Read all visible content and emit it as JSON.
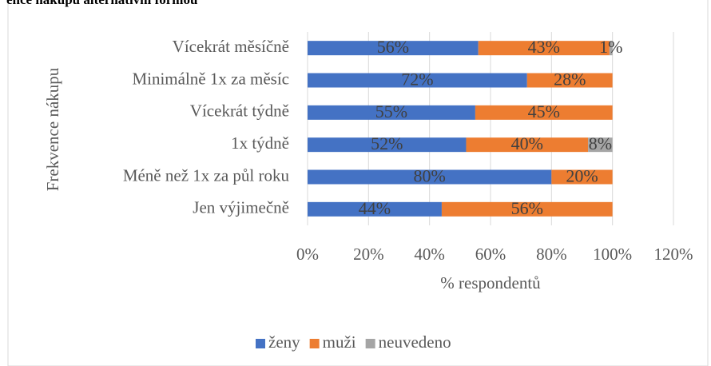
{
  "chart_data": {
    "type": "stacked_barh",
    "title": "ence nákupu alternativní formou",
    "ylabel": "Frekvence nákupu",
    "xlabel": "% respondentů",
    "categories": [
      "Vícekrát měsíčně",
      "Minimálně 1x za měsíc",
      "Vícekrát týdně",
      "1x týdně",
      "Méně než 1x za půl roku",
      "Jen výjimečně"
    ],
    "series": [
      {
        "name": "ženy",
        "color": "#4472c4",
        "values": [
          56,
          72,
          55,
          52,
          80,
          44
        ],
        "value_labels": [
          "56%",
          "72%",
          "55%",
          "52%",
          "80%",
          "44%"
        ]
      },
      {
        "name": "muži",
        "color": "#ed7d31",
        "values": [
          43,
          28,
          45,
          40,
          20,
          56
        ],
        "value_labels": [
          "43%",
          "28%",
          "45%",
          "40%",
          "20%",
          "56%"
        ]
      },
      {
        "name": "neuvedeno",
        "color": "#a5a5a5",
        "values": [
          1,
          0,
          0,
          8,
          0,
          0
        ],
        "value_labels": [
          "1%",
          null,
          null,
          "8%",
          null,
          null
        ]
      }
    ],
    "xlim": [
      0,
      120
    ],
    "xticks": [
      {
        "value": 0,
        "label": "0%"
      },
      {
        "value": 20,
        "label": "20%"
      },
      {
        "value": 40,
        "label": "40%"
      },
      {
        "value": 60,
        "label": "60%"
      },
      {
        "value": 80,
        "label": "80%"
      },
      {
        "value": 100,
        "label": "100%"
      },
      {
        "value": 120,
        "label": "120%"
      }
    ],
    "grid": true,
    "legend": "bottom"
  }
}
